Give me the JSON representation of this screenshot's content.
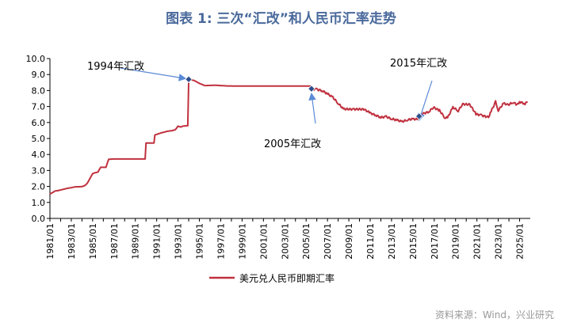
{
  "title": "图表 1:  三次“汇改”和人民币汇率走势",
  "source": "资料来源：Wind，兴业研究",
  "colors": {
    "series": "#c0313f",
    "title": "#4a6a9c",
    "marker": "#2e4f8a",
    "arrow": "#5b8ad6"
  },
  "chart_data": {
    "type": "line",
    "title": "图表 1:  三次“汇改”和人民币汇率走势",
    "xlabel": "",
    "ylabel": "",
    "ylim": [
      0,
      10
    ],
    "xlim": [
      "1981-01",
      "2025-12"
    ],
    "grid": false,
    "legend_position": "bottom",
    "y_ticks": [
      "0.0",
      "1.0",
      "2.0",
      "3.0",
      "4.0",
      "5.0",
      "6.0",
      "7.0",
      "8.0",
      "9.0",
      "10.0"
    ],
    "x_ticks": [
      "1981/01",
      "1983/01",
      "1985/01",
      "1987/01",
      "1989/01",
      "1991/01",
      "1993/01",
      "1995/01",
      "1997/01",
      "1999/01",
      "2001/01",
      "2003/01",
      "2005/01",
      "2007/01",
      "2009/01",
      "2011/01",
      "2013/01",
      "2015/01",
      "2017/01",
      "2019/01",
      "2021/01",
      "2023/01",
      "2025/01"
    ],
    "series": [
      {
        "name": "美元兑人民币即期汇率",
        "points": [
          [
            "1981-01",
            1.53
          ],
          [
            "1981-04",
            1.62
          ],
          [
            "1981-07",
            1.72
          ],
          [
            "1981-10",
            1.74
          ],
          [
            "1982-01",
            1.78
          ],
          [
            "1982-04",
            1.82
          ],
          [
            "1982-07",
            1.86
          ],
          [
            "1982-10",
            1.9
          ],
          [
            "1983-01",
            1.92
          ],
          [
            "1983-04",
            1.96
          ],
          [
            "1983-07",
            1.98
          ],
          [
            "1983-10",
            1.98
          ],
          [
            "1984-01",
            1.99
          ],
          [
            "1984-04",
            2.05
          ],
          [
            "1984-07",
            2.2
          ],
          [
            "1984-10",
            2.5
          ],
          [
            "1985-01",
            2.8
          ],
          [
            "1985-04",
            2.86
          ],
          [
            "1985-07",
            2.9
          ],
          [
            "1985-10",
            3.2
          ],
          [
            "1986-04",
            3.2
          ],
          [
            "1986-07",
            3.7
          ],
          [
            "1987-01",
            3.72
          ],
          [
            "1988-07",
            3.72
          ],
          [
            "1989-12",
            3.72
          ],
          [
            "1990-01",
            4.72
          ],
          [
            "1990-10",
            4.72
          ],
          [
            "1990-11",
            5.22
          ],
          [
            "1991-06",
            5.35
          ],
          [
            "1992-01",
            5.45
          ],
          [
            "1992-07",
            5.5
          ],
          [
            "1992-10",
            5.55
          ],
          [
            "1993-01",
            5.77
          ],
          [
            "1993-04",
            5.72
          ],
          [
            "1993-07",
            5.78
          ],
          [
            "1993-12",
            5.8
          ],
          [
            "1994-01",
            8.7
          ],
          [
            "1994-07",
            8.63
          ],
          [
            "1995-01",
            8.45
          ],
          [
            "1995-07",
            8.31
          ],
          [
            "1996-07",
            8.33
          ],
          [
            "1997-07",
            8.29
          ],
          [
            "1998-07",
            8.28
          ],
          [
            "2000-07",
            8.28
          ],
          [
            "2003-07",
            8.28
          ],
          [
            "2005-06",
            8.28
          ],
          [
            "2005-07",
            8.11
          ],
          [
            "2006-01",
            8.07
          ],
          [
            "2006-07",
            7.99
          ],
          [
            "2007-01",
            7.8
          ],
          [
            "2007-07",
            7.57
          ],
          [
            "2008-01",
            7.2
          ],
          [
            "2008-07",
            6.84
          ],
          [
            "2009-07",
            6.83
          ],
          [
            "2010-06",
            6.83
          ],
          [
            "2011-01",
            6.6
          ],
          [
            "2011-07",
            6.46
          ],
          [
            "2012-01",
            6.32
          ],
          [
            "2012-07",
            6.36
          ],
          [
            "2013-01",
            6.23
          ],
          [
            "2013-07",
            6.15
          ],
          [
            "2014-01",
            6.05
          ],
          [
            "2014-07",
            6.17
          ],
          [
            "2015-01",
            6.21
          ],
          [
            "2015-07",
            6.21
          ],
          [
            "2015-08",
            6.39
          ],
          [
            "2016-01",
            6.57
          ],
          [
            "2016-07",
            6.67
          ],
          [
            "2016-12",
            6.95
          ],
          [
            "2017-07",
            6.75
          ],
          [
            "2018-01",
            6.3
          ],
          [
            "2018-04",
            6.3
          ],
          [
            "2018-10",
            6.95
          ],
          [
            "2019-04",
            6.73
          ],
          [
            "2019-09",
            7.15
          ],
          [
            "2020-05",
            7.12
          ],
          [
            "2020-12",
            6.53
          ],
          [
            "2021-06",
            6.45
          ],
          [
            "2022-02",
            6.33
          ],
          [
            "2022-05",
            6.7
          ],
          [
            "2022-10",
            7.3
          ],
          [
            "2023-01",
            6.75
          ],
          [
            "2023-07",
            7.2
          ],
          [
            "2023-12",
            7.1
          ],
          [
            "2024-06",
            7.27
          ],
          [
            "2024-10",
            7.1
          ],
          [
            "2025-01",
            7.3
          ],
          [
            "2025-07",
            7.17
          ],
          [
            "2025-10",
            7.3
          ]
        ]
      }
    ],
    "annotations": [
      {
        "text": "1994年汇改",
        "date": "1994-01",
        "value": 8.7
      },
      {
        "text": "2005年汇改",
        "date": "2005-07",
        "value": 8.11
      },
      {
        "text": "2015年汇改",
        "date": "2015-08",
        "value": 6.39
      }
    ]
  }
}
